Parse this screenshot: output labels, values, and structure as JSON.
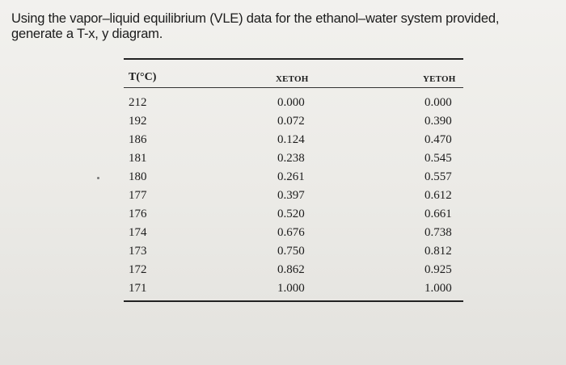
{
  "question": "Using the vapor–liquid equilibrium (VLE) data for the ethanol–water system provided, generate a T-x, y diagram.",
  "table": {
    "headers": {
      "temperature": "T(°C)",
      "x": "XETOH",
      "y": "YETOH"
    },
    "rows": [
      {
        "t": "212",
        "x": "0.000",
        "y": "0.000"
      },
      {
        "t": "192",
        "x": "0.072",
        "y": "0.390"
      },
      {
        "t": "186",
        "x": "0.124",
        "y": "0.470"
      },
      {
        "t": "181",
        "x": "0.238",
        "y": "0.545"
      },
      {
        "t": "180",
        "x": "0.261",
        "y": "0.557"
      },
      {
        "t": "177",
        "x": "0.397",
        "y": "0.612"
      },
      {
        "t": "176",
        "x": "0.520",
        "y": "0.661"
      },
      {
        "t": "174",
        "x": "0.676",
        "y": "0.738"
      },
      {
        "t": "173",
        "x": "0.750",
        "y": "0.812"
      },
      {
        "t": "172",
        "x": "0.862",
        "y": "0.925"
      },
      {
        "t": "171",
        "x": "1.000",
        "y": "1.000"
      }
    ]
  }
}
